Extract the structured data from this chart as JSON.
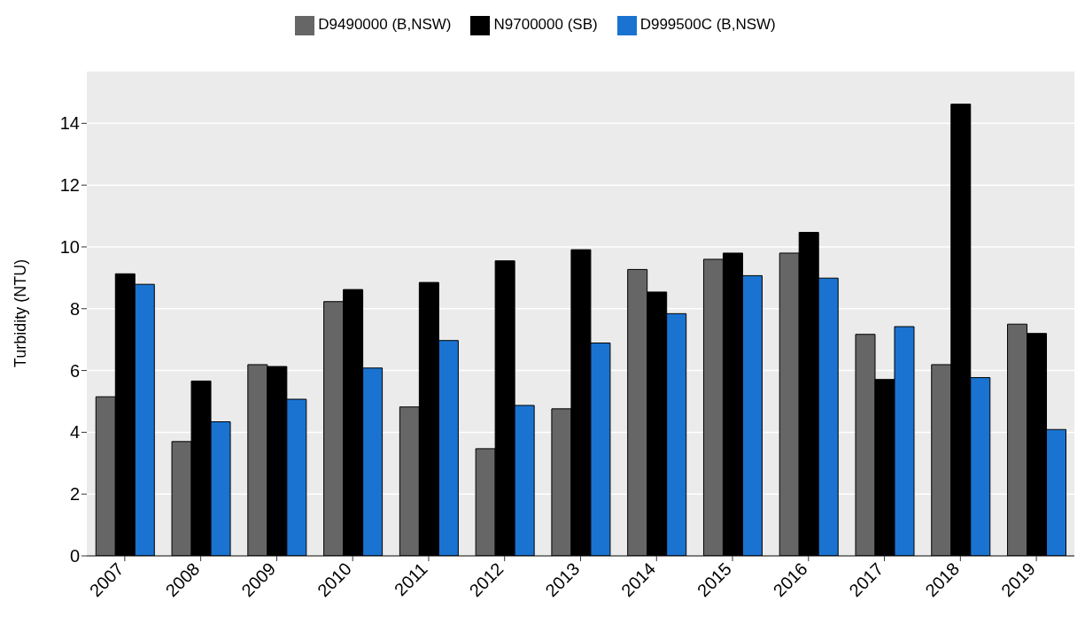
{
  "chart_data": {
    "type": "bar",
    "ylabel": "Turbidity (NTU)",
    "categories": [
      "2007",
      "2008",
      "2009",
      "2010",
      "2011",
      "2012",
      "2013",
      "2014",
      "2015",
      "2016",
      "2017",
      "2018",
      "2019"
    ],
    "series": [
      {
        "name": "D9490000 (B,NSW)",
        "color": "#666666",
        "values": [
          5.15,
          3.7,
          6.19,
          8.23,
          4.82,
          3.47,
          4.76,
          9.27,
          9.6,
          9.8,
          7.17,
          6.19,
          7.5
        ]
      },
      {
        "name": "N9700000 (SB)",
        "color": "#000000",
        "values": [
          9.13,
          5.66,
          6.13,
          8.62,
          8.85,
          9.55,
          9.91,
          8.54,
          9.8,
          10.47,
          5.71,
          14.62,
          7.2
        ]
      },
      {
        "name": "D999500C (B,NSW)",
        "color": "#1a73d0",
        "values": [
          8.79,
          4.34,
          5.07,
          6.08,
          6.97,
          4.87,
          6.89,
          7.84,
          9.07,
          8.99,
          7.42,
          5.77,
          4.09
        ]
      }
    ],
    "ylim": [
      0,
      15.7
    ],
    "yticks": [
      0,
      2,
      4,
      6,
      8,
      10,
      12,
      14
    ],
    "grid": "y",
    "legend": "top"
  }
}
